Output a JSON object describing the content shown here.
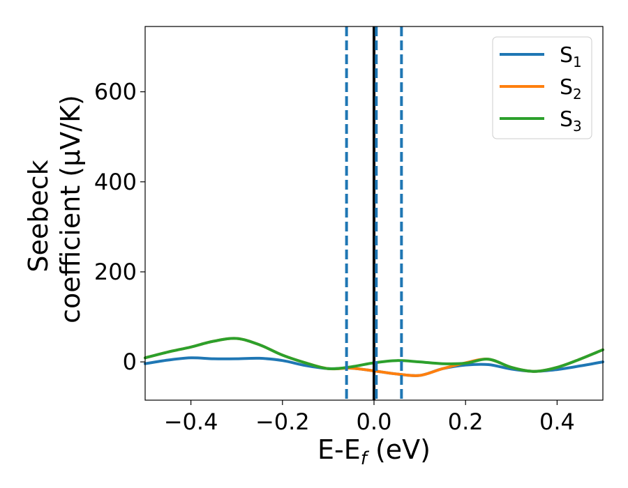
{
  "chart_data": {
    "type": "line",
    "xlabel": "E-E",
    "xlabel_sub": "f",
    "xlabel_unit": " (eV)",
    "ylabel_line1": "Seebeck",
    "ylabel_line2": "coefficient  (μV/K)",
    "xlim": [
      -0.5,
      0.5
    ],
    "ylim": [
      -85,
      745
    ],
    "x_ticks": [
      -0.4,
      -0.2,
      0.0,
      0.2,
      0.4
    ],
    "x_tick_labels": [
      "−0.4",
      "−0.2",
      "0.0",
      "0.2",
      "0.4"
    ],
    "y_ticks": [
      0,
      200,
      400,
      600
    ],
    "y_tick_labels": [
      "0",
      "200",
      "400",
      "600"
    ],
    "grid": false,
    "legend_position": "top-right",
    "vertical_lines": [
      {
        "x": -0.06,
        "style": "dashed",
        "color": "#1f77b4"
      },
      {
        "x": 0.0,
        "style": "solid",
        "color": "#000000"
      },
      {
        "x": 0.005,
        "style": "dashed",
        "color": "#1f77b4"
      },
      {
        "x": 0.06,
        "style": "dashed",
        "color": "#1f77b4"
      }
    ],
    "series": [
      {
        "name": "S",
        "name_sub": "1",
        "color": "#1f77b4",
        "x": [
          -0.5,
          -0.45,
          -0.4,
          -0.35,
          -0.3,
          -0.25,
          -0.2,
          -0.15,
          -0.1,
          -0.05,
          0.0,
          0.05,
          0.1,
          0.15,
          0.2,
          0.25,
          0.3,
          0.35,
          0.4,
          0.45,
          0.5
        ],
        "y": [
          -4,
          4,
          9,
          7,
          7,
          8,
          3,
          -8,
          -15,
          -14,
          -20,
          -27,
          -30,
          -15,
          -7,
          -6,
          -16,
          -21,
          -17,
          -9,
          0
        ]
      },
      {
        "name": "S",
        "name_sub": "2",
        "color": "#ff7f0e",
        "x": [
          -0.5,
          -0.45,
          -0.4,
          -0.35,
          -0.3,
          -0.25,
          -0.2,
          -0.15,
          -0.1,
          -0.05,
          0.0,
          0.05,
          0.1,
          0.15,
          0.2,
          0.25,
          0.3,
          0.35,
          0.4,
          0.45,
          0.5
        ],
        "y": [
          9,
          22,
          33,
          46,
          52,
          38,
          15,
          -2,
          -15,
          -14,
          -20,
          -27,
          -30,
          -15,
          -2,
          6,
          -12,
          -21,
          -12,
          6,
          27
        ]
      },
      {
        "name": "S",
        "name_sub": "3",
        "color": "#2ca02c",
        "x": [
          -0.5,
          -0.45,
          -0.4,
          -0.35,
          -0.3,
          -0.25,
          -0.2,
          -0.15,
          -0.1,
          -0.05,
          0.0,
          0.05,
          0.1,
          0.15,
          0.2,
          0.25,
          0.3,
          0.35,
          0.4,
          0.45,
          0.5
        ],
        "y": [
          9,
          22,
          33,
          46,
          52,
          38,
          15,
          -2,
          -15,
          -11,
          -2,
          3,
          0,
          -4,
          -3,
          6,
          -12,
          -21,
          -12,
          6,
          27
        ]
      }
    ]
  }
}
